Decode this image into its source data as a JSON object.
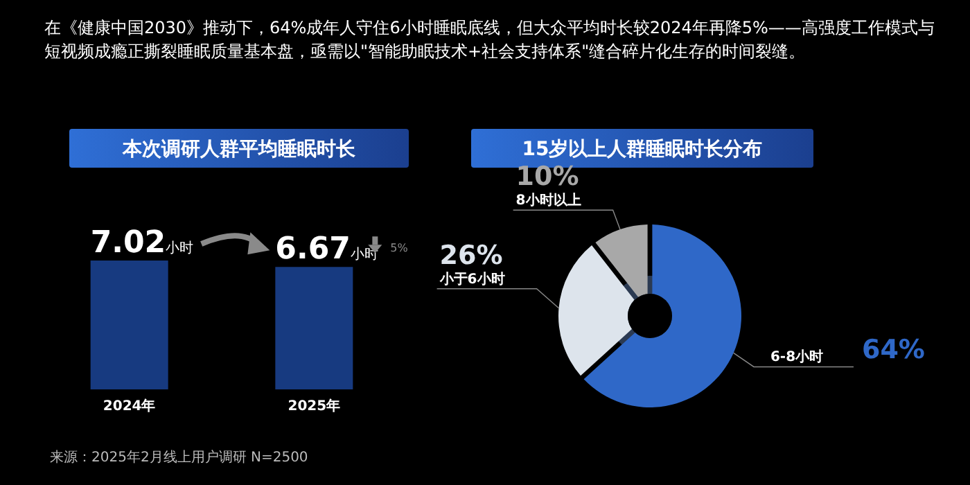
{
  "chart_data": [
    {
      "type": "bar",
      "title": "本次调研人群平均睡眠时长",
      "categories": [
        "2024年",
        "2025年"
      ],
      "values": [
        7.02,
        6.67
      ],
      "color": "#173a80",
      "value_labels": [
        "7.02小时",
        "6.67小时"
      ],
      "annotations": [
        "在《健康中国2030》推动下，64%成年人守住6小时睡眠底线，但大众平均时长较2024年再降5%——高强度工作模式与短视频成瘾正撕裂睡眠质量基本盘，亟需以\"智能助眠技术+社会支持体系\"缝合碎片化生存的时间裂缝。",
        "5%",
        "来源：2025年2月线上用户调研 N=2500"
      ]
    },
    {
      "type": "donut",
      "title": "15岁以上人群睡眠时长分布",
      "categories": [
        "6-8小时",
        "小于6小时",
        "8小时以上"
      ],
      "values": [
        64,
        26,
        10
      ],
      "colors": [
        "#2f68c8",
        "#dde4ec",
        "#a8a8a8"
      ],
      "value_labels": [
        "64%",
        "26%",
        "10%"
      ]
    }
  ]
}
